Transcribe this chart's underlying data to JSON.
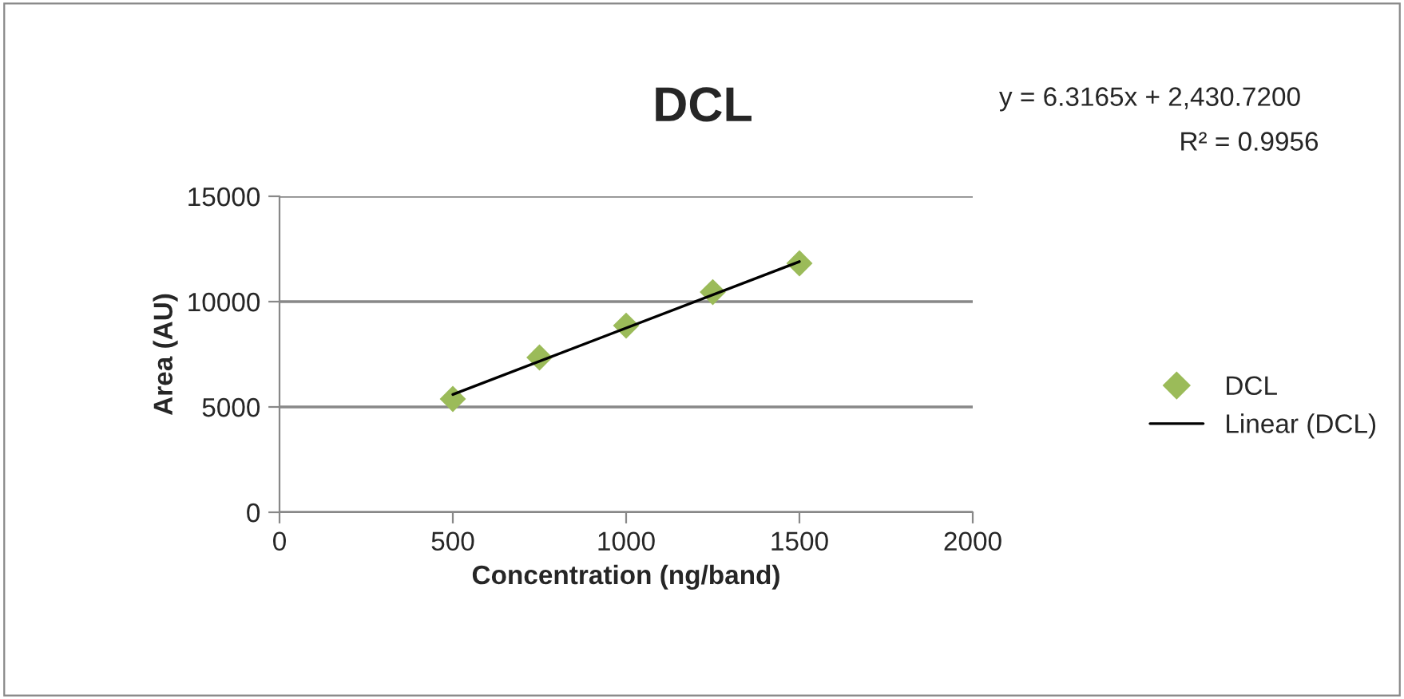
{
  "chart_data": {
    "type": "scatter",
    "title": "DCL",
    "xlabel": "Concentration (ng/band)",
    "ylabel": "Area (AU)",
    "x": [
      500,
      750,
      1000,
      1250,
      1500
    ],
    "series": [
      {
        "name": "DCL",
        "color": "#9bbb59",
        "marker": "diamond",
        "values": [
          5380,
          7350,
          8860,
          10450,
          11820
        ]
      },
      {
        "name": "Linear (DCL)",
        "type": "line",
        "color": "#000000",
        "marker": "none",
        "line_style": "solid",
        "x": [
          500,
          1500
        ],
        "values": [
          5590,
          11900
        ]
      }
    ],
    "xlim": [
      0,
      2000
    ],
    "xticks": [
      0,
      500,
      1000,
      1500,
      2000
    ],
    "ylim": [
      0,
      15000
    ],
    "yticks": [
      0,
      5000,
      10000,
      15000
    ],
    "grid": "y",
    "legend": "right",
    "annotations": [
      "y = 6.3165x + 2,430.7200",
      "R² = 0.9956"
    ]
  }
}
